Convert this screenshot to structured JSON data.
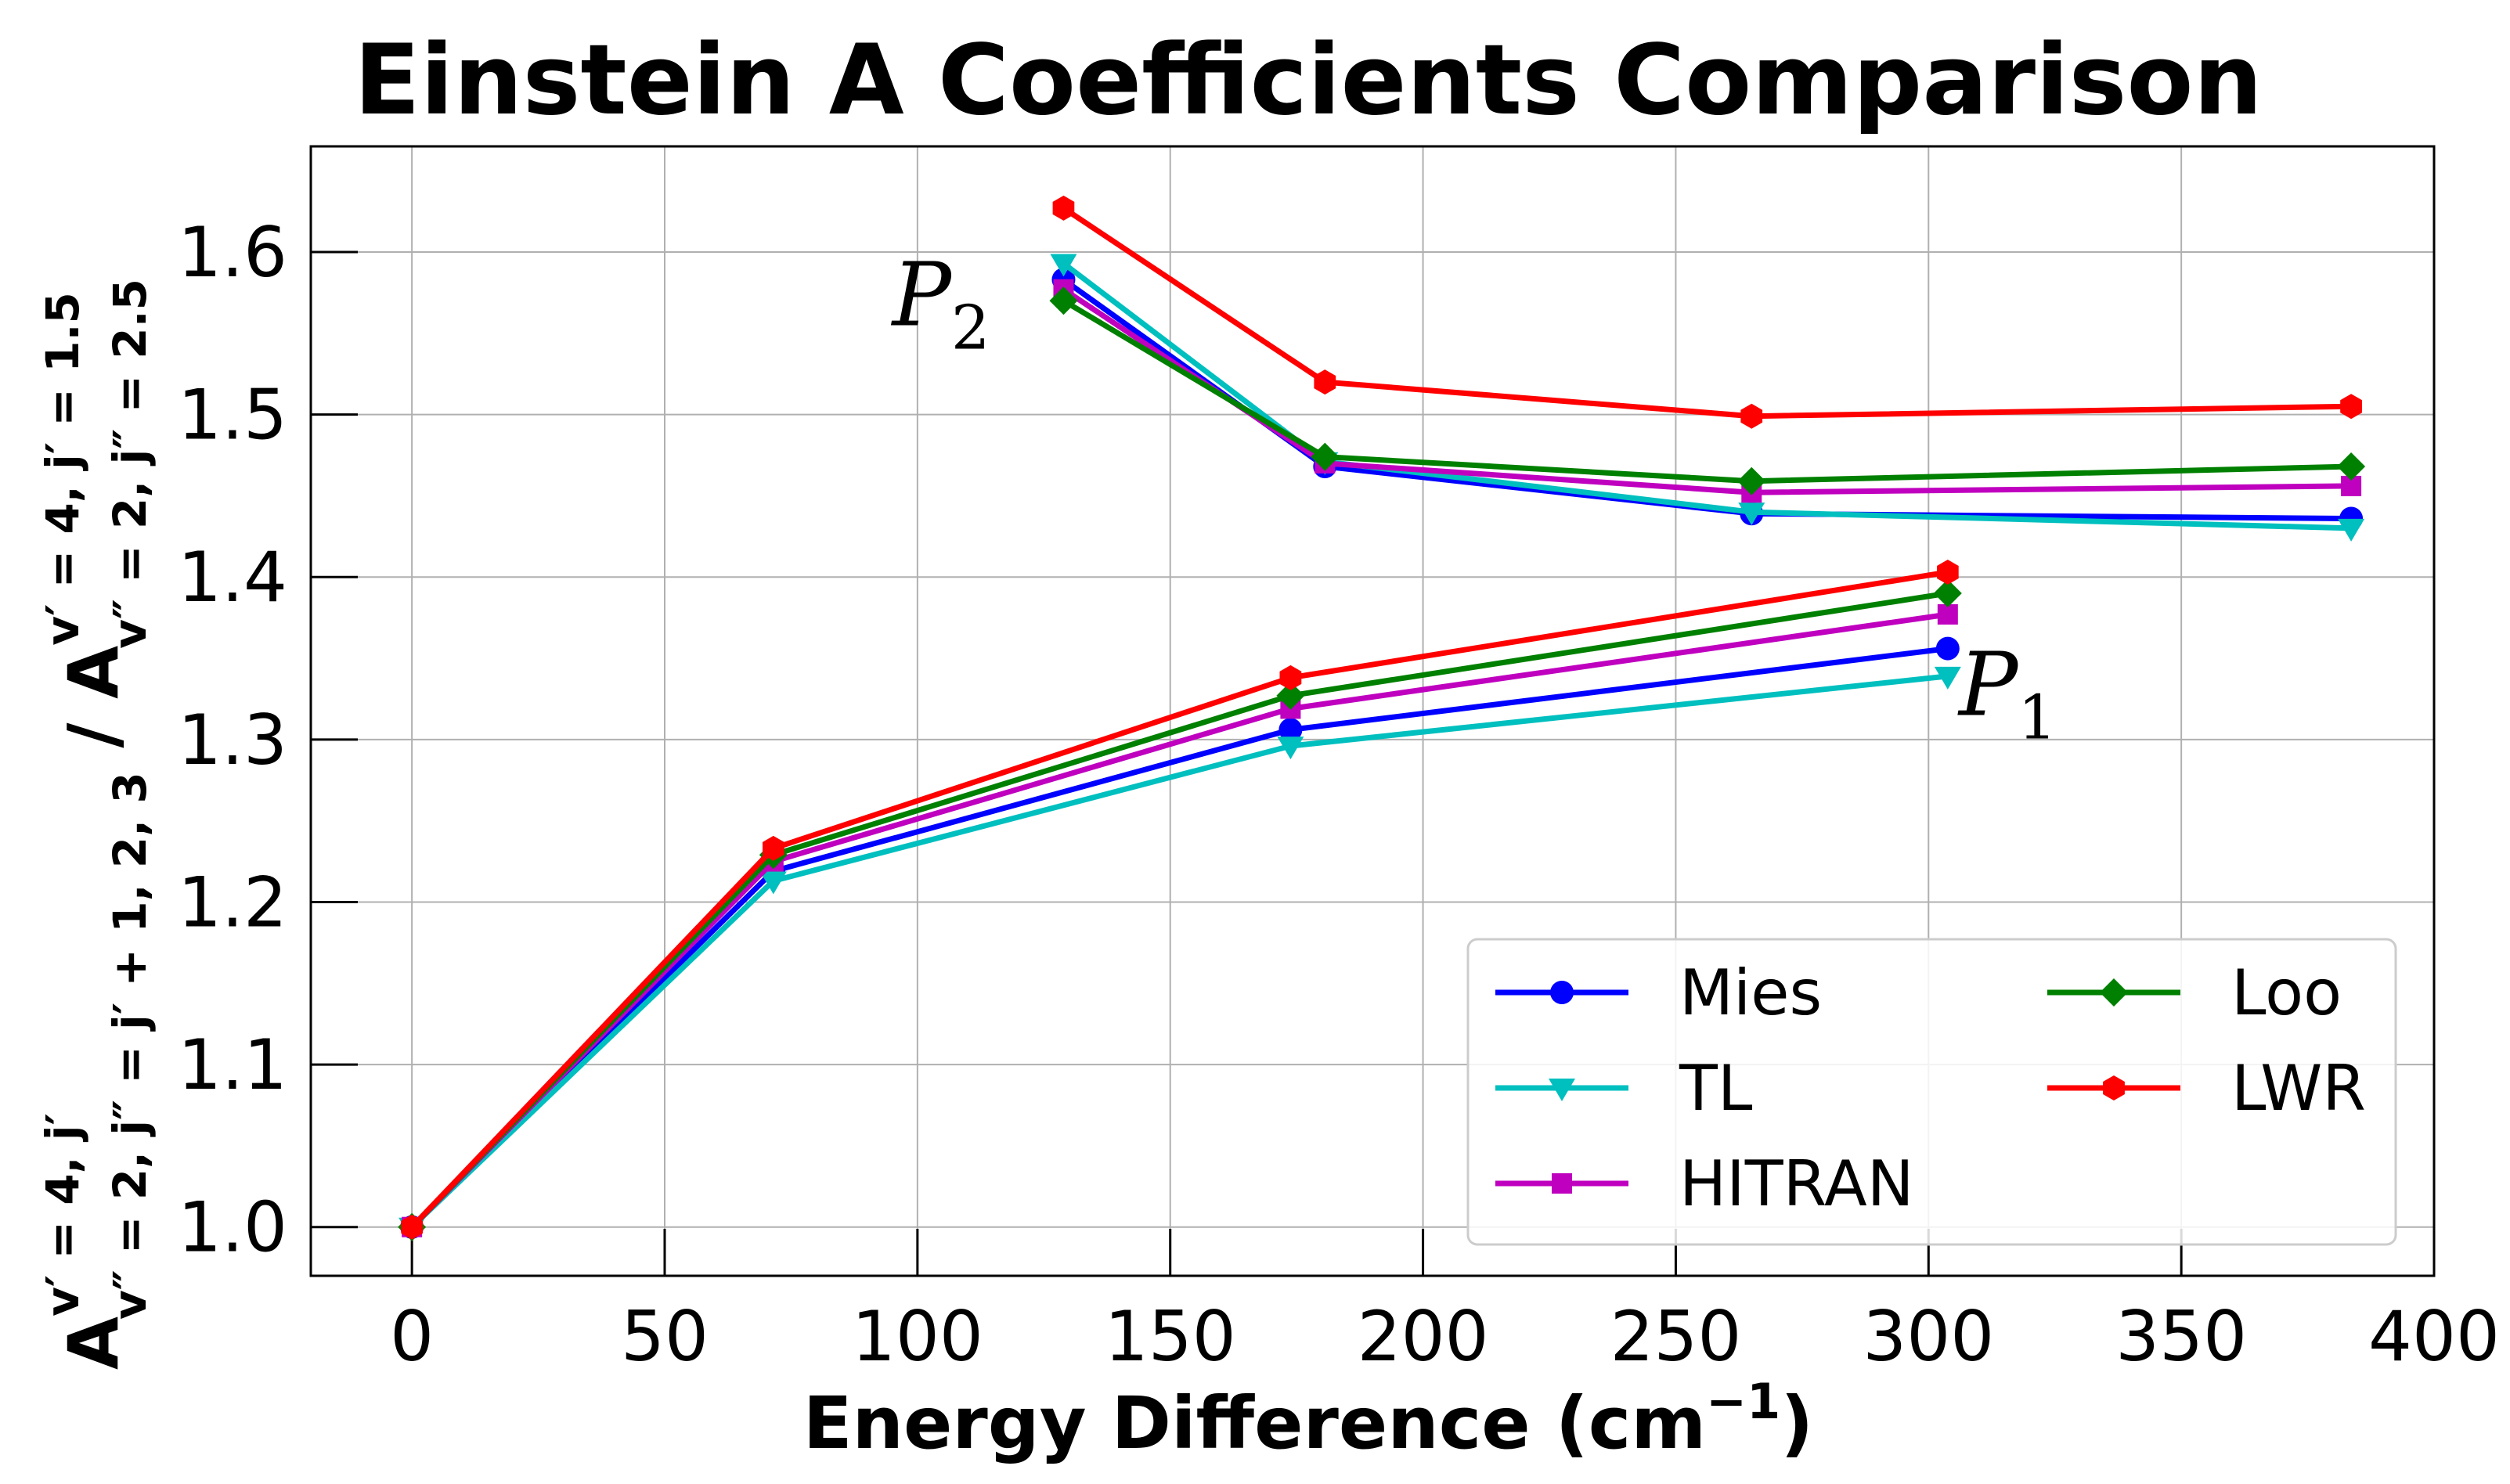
{
  "chart_data": {
    "type": "line",
    "title": "Einstein A Coefficients Comparison",
    "xlabel": {
      "main": "Energy Difference (cm",
      "sup": "−1",
      "close": ")"
    },
    "ylabel": {
      "num_base": "A",
      "num_sup": "v′ = 4, j′",
      "num_sub": "v″ = 2, j″ = j′ + 1, 2, 3",
      "sep": " / ",
      "den_base": "A",
      "den_sup": "v′ = 4, j′ = 1.5",
      "den_sub": "v″ = 2, j″ = 2.5"
    },
    "xlim": [
      -20,
      400
    ],
    "ylim": [
      0.97,
      1.665
    ],
    "xticks": [
      0,
      50,
      100,
      150,
      200,
      250,
      300,
      350,
      400
    ],
    "xtick_labels": [
      "0",
      "50",
      "100",
      "150",
      "200",
      "250",
      "300",
      "350",
      "400"
    ],
    "yticks": [
      1.0,
      1.1,
      1.2,
      1.3,
      1.4,
      1.5,
      1.6
    ],
    "ytick_labels": [
      "1.0",
      "1.1",
      "1.2",
      "1.3",
      "1.4",
      "1.5",
      "1.6"
    ],
    "grid": true,
    "legend_position": "lower-right",
    "series": [
      {
        "name": "Mies",
        "color": "#0000ff",
        "marker": "circle",
        "segments": [
          {
            "x": [
              0,
              71.5,
              173.8,
              303.8
            ],
            "y": [
              1.0,
              1.219,
              1.306,
              1.356
            ]
          },
          {
            "x": [
              128.9,
              180.6,
              265.0,
              383.6
            ],
            "y": [
              1.583,
              1.468,
              1.439,
              1.436
            ]
          }
        ]
      },
      {
        "name": "TL",
        "color": "#00bfbf",
        "marker": "triangle-down",
        "segments": [
          {
            "x": [
              0,
              71.5,
              173.8,
              303.8
            ],
            "y": [
              1.0,
              1.213,
              1.296,
              1.339
            ]
          },
          {
            "x": [
              128.9,
              180.6,
              265.0,
              383.6
            ],
            "y": [
              1.593,
              1.471,
              1.44,
              1.43
            ]
          }
        ]
      },
      {
        "name": "HITRAN",
        "color": "#bf00bf",
        "marker": "square",
        "segments": [
          {
            "x": [
              0,
              71.5,
              173.8,
              303.8
            ],
            "y": [
              1.0,
              1.225,
              1.319,
              1.377
            ]
          },
          {
            "x": [
              128.9,
              180.6,
              265.0,
              383.6
            ],
            "y": [
              1.577,
              1.47,
              1.452,
              1.456
            ]
          }
        ]
      },
      {
        "name": "Loo",
        "color": "#008000",
        "marker": "diamond",
        "segments": [
          {
            "x": [
              0,
              71.5,
              173.8,
              303.8
            ],
            "y": [
              1.0,
              1.229,
              1.327,
              1.39
            ]
          },
          {
            "x": [
              128.9,
              180.6,
              265.0,
              383.6
            ],
            "y": [
              1.57,
              1.474,
              1.459,
              1.468
            ]
          }
        ]
      },
      {
        "name": "LWR",
        "color": "#ff0000",
        "marker": "hexagon",
        "segments": [
          {
            "x": [
              0,
              71.5,
              173.8,
              303.8
            ],
            "y": [
              1.0,
              1.233,
              1.338,
              1.403
            ]
          },
          {
            "x": [
              128.9,
              180.6,
              265.0,
              383.6
            ],
            "y": [
              1.627,
              1.52,
              1.499,
              1.505
            ]
          }
        ]
      }
    ],
    "annotations": [
      {
        "base": "P",
        "sub": "2",
        "x": 95,
        "y": 1.555
      },
      {
        "base": "P",
        "sub": "1",
        "x": 306,
        "y": 1.315
      }
    ]
  }
}
